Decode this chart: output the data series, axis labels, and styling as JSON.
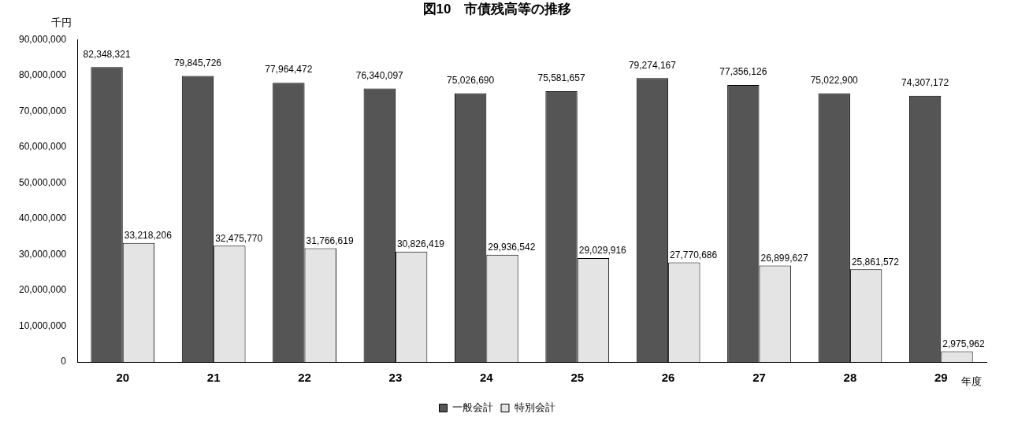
{
  "chart_data": {
    "type": "bar",
    "title": "図10　市債残高等の推移",
    "ylabel": "千円",
    "xlabel": "年度",
    "categories": [
      "20",
      "21",
      "22",
      "23",
      "24",
      "25",
      "26",
      "27",
      "28",
      "29"
    ],
    "series": [
      {
        "name": "一般会計",
        "color": "#555555",
        "values": [
          82348321,
          79845726,
          77964472,
          76340097,
          75026690,
          75581657,
          79274167,
          77356126,
          75022900,
          74307172
        ],
        "value_labels": [
          "82,348,321",
          "79,845,726",
          "77,964,472",
          "76,340,097",
          "75,026,690",
          "75,581,657",
          "79,274,167",
          "77,356,126",
          "75,022,900",
          "74,307,172"
        ]
      },
      {
        "name": "特別会計",
        "color": "#e4e4e4",
        "values": [
          33218206,
          32475770,
          31766619,
          30826419,
          29936542,
          29029916,
          27770686,
          26899627,
          25861572,
          2975962
        ],
        "value_labels": [
          "33,218,206",
          "32,475,770",
          "31,766,619",
          "30,826,419",
          "29,936,542",
          "29,029,916",
          "27,770,686",
          "26,899,627",
          "25,861,572",
          "2,975,962"
        ]
      }
    ],
    "ylim": [
      0,
      90000000
    ],
    "yticks": [
      0,
      {
        "value": 10000000,
        "label": "10,000,000"
      },
      {
        "value": 20000000,
        "label": "20,000,000"
      },
      {
        "value": 30000000,
        "label": "30,000,000"
      },
      {
        "value": 40000000,
        "label": "40,000,000"
      },
      {
        "value": 50000000,
        "label": "50,000,000"
      },
      {
        "value": 60000000,
        "label": "60,000,000"
      },
      {
        "value": 70000000,
        "label": "70,000,000"
      },
      {
        "value": 80000000,
        "label": "80,000,000"
      },
      {
        "value": 90000000,
        "label": "90,000,000"
      }
    ],
    "grid": false,
    "legend": "bottom"
  }
}
